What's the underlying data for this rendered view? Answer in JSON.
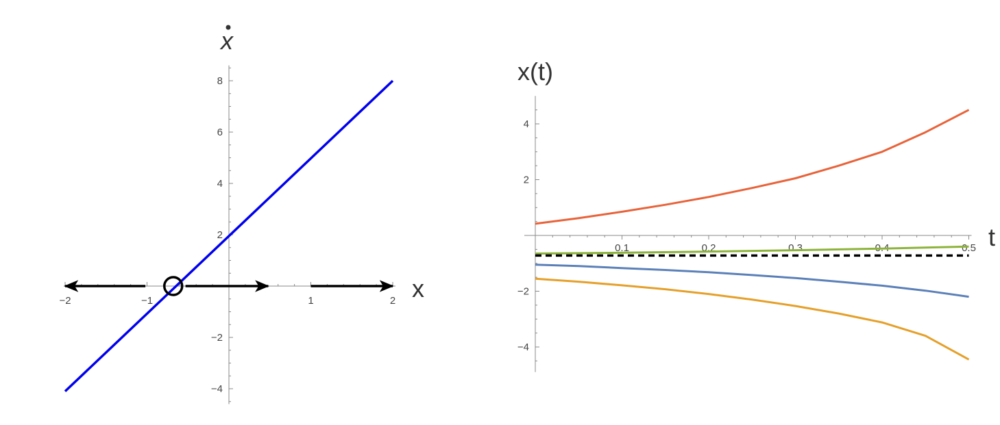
{
  "chart_data": [
    {
      "type": "line",
      "title": "",
      "xlabel": "x",
      "ylabel": "ẋ",
      "xlim": [
        -2,
        2
      ],
      "ylim": [
        -4.6,
        8.6
      ],
      "xticks": [
        -2,
        -1,
        1,
        2
      ],
      "yticks": [
        -4,
        -2,
        2,
        4,
        6,
        8
      ],
      "x_tick_labels": [
        "−2",
        "−1",
        "1",
        "2"
      ],
      "y_tick_labels": [
        "−4",
        "−2",
        "2",
        "4",
        "6",
        "8"
      ],
      "grid": false,
      "series": [
        {
          "color": "#0000ee",
          "x": [
            -2,
            2
          ],
          "y": [
            -4.1,
            8
          ]
        }
      ],
      "fixed_points": [
        {
          "x": -0.68,
          "y": 0,
          "marker": "open-circle"
        }
      ],
      "flow_arrows": [
        {
          "from": -1.02,
          "to": -2.0
        },
        {
          "from": -0.53,
          "to": 0.48
        },
        {
          "from": 1.0,
          "to": 2.0
        }
      ],
      "colors": {
        "line": "#0000ee",
        "arrows": "#000000",
        "axes": "#888888"
      }
    },
    {
      "type": "line",
      "title": "",
      "xlabel": "t",
      "ylabel": "x(t)",
      "xlim": [
        0,
        0.5
      ],
      "ylim": [
        -4.9,
        5.0
      ],
      "xticks": [
        0.1,
        0.2,
        0.3,
        0.4,
        0.5
      ],
      "yticks": [
        -4,
        -2,
        2,
        4
      ],
      "x_tick_labels": [
        "0.1",
        "0.2",
        "0.3",
        "0.4",
        "0.5"
      ],
      "y_tick_labels": [
        "−4",
        "−2",
        "2",
        "4"
      ],
      "grid": false,
      "series": [
        {
          "color": "#e8633a",
          "t": [
            0,
            0.05,
            0.1,
            0.15,
            0.2,
            0.25,
            0.3,
            0.35,
            0.4,
            0.45,
            0.5
          ],
          "values": [
            0.42,
            0.62,
            0.85,
            1.1,
            1.38,
            1.7,
            2.05,
            2.5,
            3.0,
            3.7,
            4.5
          ]
        },
        {
          "color": "#8cb33a",
          "t": [
            0,
            0.1,
            0.2,
            0.3,
            0.4,
            0.5
          ],
          "values": [
            -0.65,
            -0.62,
            -0.58,
            -0.53,
            -0.47,
            -0.4
          ]
        },
        {
          "color": "#5b80b8",
          "t": [
            0,
            0.05,
            0.1,
            0.15,
            0.2,
            0.25,
            0.3,
            0.35,
            0.4,
            0.45,
            0.5
          ],
          "values": [
            -1.05,
            -1.1,
            -1.17,
            -1.24,
            -1.32,
            -1.42,
            -1.53,
            -1.66,
            -1.8,
            -1.98,
            -2.2
          ]
        },
        {
          "color": "#e5a02a",
          "t": [
            0,
            0.05,
            0.1,
            0.15,
            0.2,
            0.25,
            0.3,
            0.35,
            0.4,
            0.45,
            0.5
          ],
          "values": [
            -1.55,
            -1.66,
            -1.79,
            -1.93,
            -2.1,
            -2.3,
            -2.53,
            -2.8,
            -3.12,
            -3.6,
            -4.45
          ]
        }
      ],
      "reference_line": {
        "y": -0.72,
        "style": "dashed",
        "color": "#000000"
      }
    }
  ]
}
